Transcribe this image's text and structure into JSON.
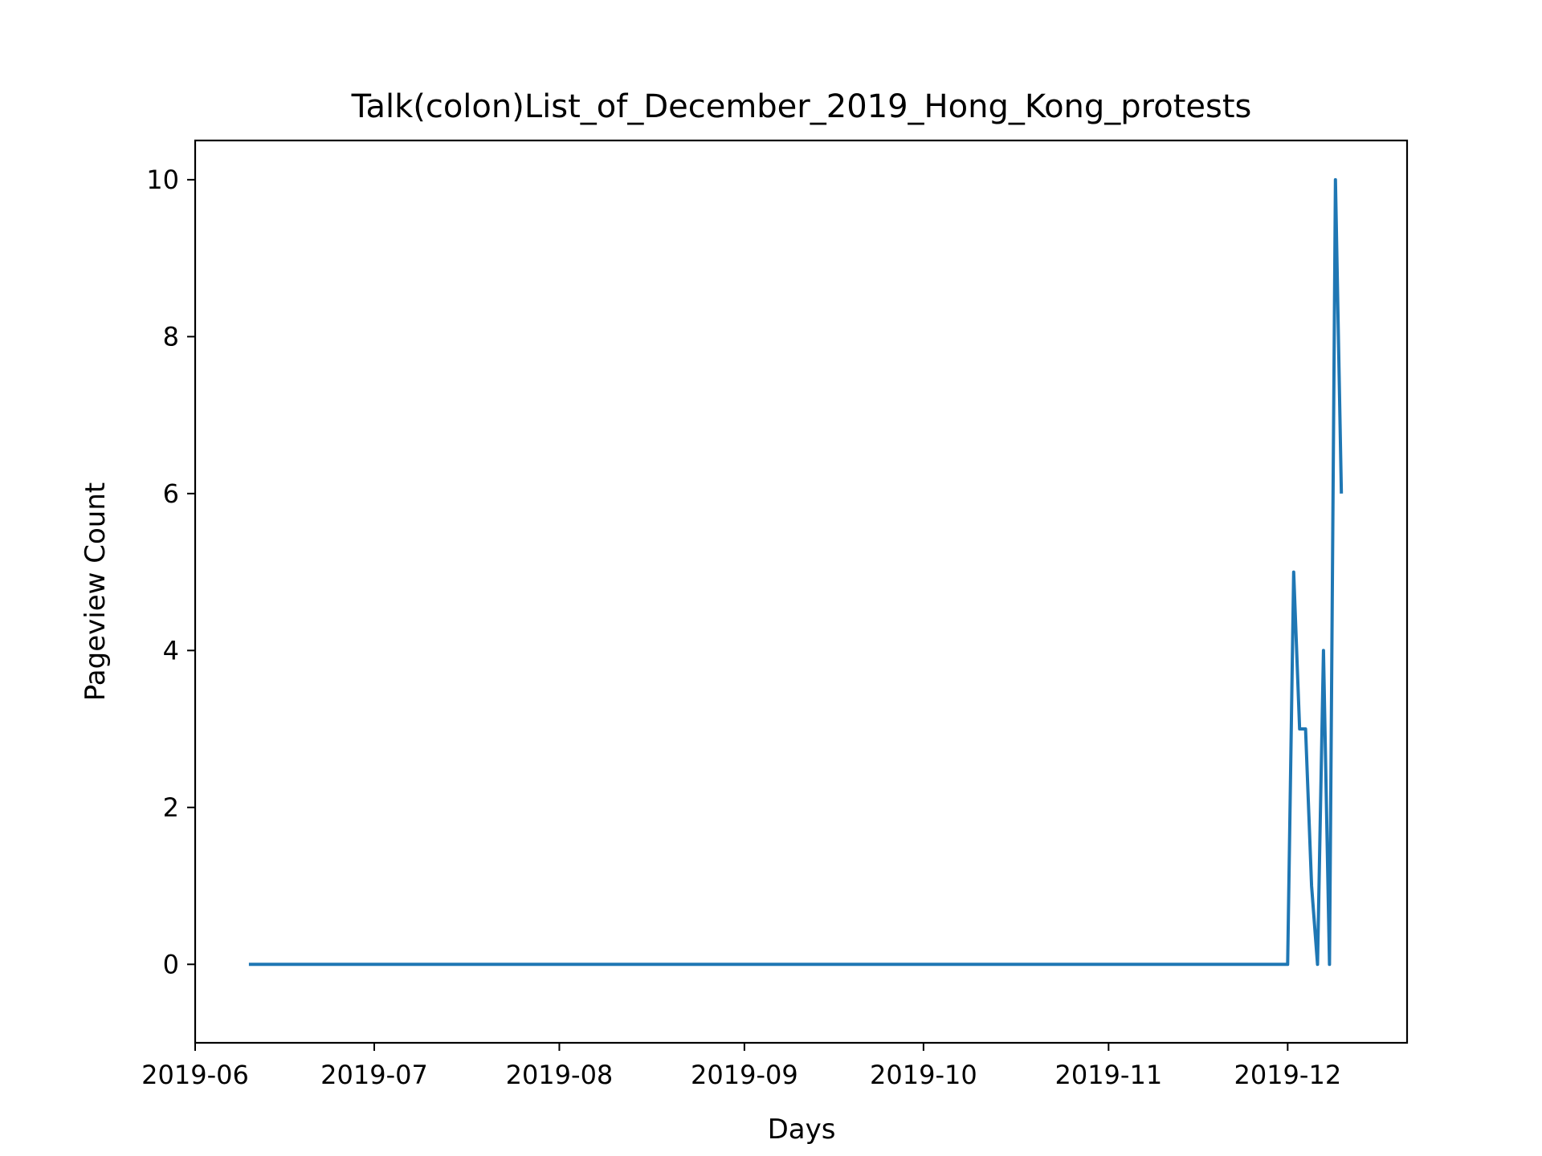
{
  "chart_data": {
    "type": "line",
    "title": "Talk(colon)List_of_December_2019_Hong_Kong_protests",
    "xlabel": "Days",
    "ylabel": "Pageview Count",
    "x_ticks": [
      "2019-06",
      "2019-07",
      "2019-08",
      "2019-09",
      "2019-10",
      "2019-11",
      "2019-12"
    ],
    "y_ticks": [
      0,
      2,
      4,
      6,
      8,
      10
    ],
    "xlim": [
      "2019-06-01",
      "2019-12-21"
    ],
    "ylim": [
      -1,
      10.5
    ],
    "grid": false,
    "legend": "none",
    "series": [
      {
        "color": "#1f77b4",
        "points": [
          [
            "2019-06-10",
            0
          ],
          [
            "2019-12-01",
            0
          ],
          [
            "2019-12-02",
            5
          ],
          [
            "2019-12-03",
            3
          ],
          [
            "2019-12-04",
            3
          ],
          [
            "2019-12-05",
            1
          ],
          [
            "2019-12-06",
            0
          ],
          [
            "2019-12-07",
            4
          ],
          [
            "2019-12-08",
            0
          ],
          [
            "2019-12-09",
            10
          ],
          [
            "2019-12-10",
            6
          ]
        ]
      }
    ]
  }
}
